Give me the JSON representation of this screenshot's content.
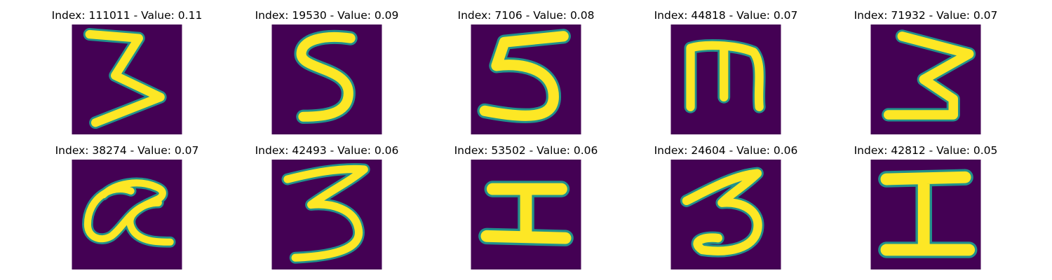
{
  "palette": {
    "background": "#440154",
    "edge": "#21918c",
    "mid": "#5ec962",
    "stroke": "#fde725"
  },
  "grid": [
    {
      "title": "Index: 111011 - Value: 0.11",
      "glyph": "3"
    },
    {
      "title": "Index: 19530 - Value: 0.09",
      "glyph": "S"
    },
    {
      "title": "Index: 7106 - Value: 0.08",
      "glyph": "5"
    },
    {
      "title": "Index: 44818 - Value: 0.07",
      "glyph": "m"
    },
    {
      "title": "Index: 71932 - Value: 0.07",
      "glyph": "3"
    },
    {
      "title": "Index: 38274 - Value: 0.07",
      "glyph": "α"
    },
    {
      "title": "Index: 42493 - Value: 0.06",
      "glyph": "3"
    },
    {
      "title": "Index: 53502 - Value: 0.06",
      "glyph": "I"
    },
    {
      "title": "Index: 24604 - Value: 0.06",
      "glyph": "3"
    },
    {
      "title": "Index: 42812 - Value: 0.05",
      "glyph": "I"
    }
  ]
}
